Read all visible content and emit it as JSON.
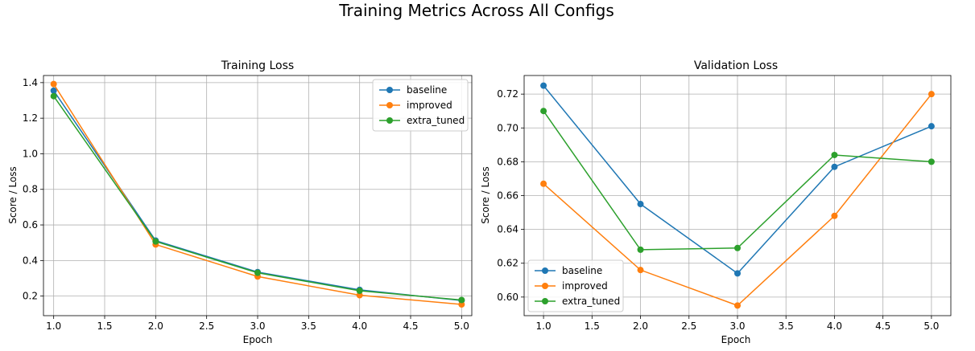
{
  "figure": {
    "title": "Training Metrics Across All Configs"
  },
  "colors": {
    "baseline": "#1f77b4",
    "improved": "#ff7f0e",
    "extra_tuned": "#2ca02c"
  },
  "chart_data": [
    {
      "type": "line",
      "title": "Training Loss",
      "xlabel": "Epoch",
      "ylabel": "Score / Loss",
      "x": [
        1.0,
        2.0,
        3.0,
        4.0,
        5.0
      ],
      "xlim": [
        0.9,
        5.1
      ],
      "ylim": [
        0.09,
        1.44
      ],
      "xticks": [
        "1.0",
        "1.5",
        "2.0",
        "2.5",
        "3.0",
        "3.5",
        "4.0",
        "4.5",
        "5.0"
      ],
      "yticks": [
        "0.2",
        "0.4",
        "0.6",
        "0.8",
        "1.0",
        "1.2",
        "1.4"
      ],
      "grid": true,
      "legend": "top-right",
      "series": [
        {
          "name": "baseline",
          "values": [
            1.355,
            0.512,
            0.335,
            0.235,
            0.175
          ]
        },
        {
          "name": "improved",
          "values": [
            1.392,
            0.49,
            0.31,
            0.205,
            0.153
          ]
        },
        {
          "name": "extra_tuned",
          "values": [
            1.324,
            0.507,
            0.331,
            0.23,
            0.178
          ]
        }
      ]
    },
    {
      "type": "line",
      "title": "Validation Loss",
      "xlabel": "Epoch",
      "ylabel": "Score / Loss",
      "x": [
        1.0,
        2.0,
        3.0,
        4.0,
        5.0
      ],
      "xlim": [
        0.8,
        5.2
      ],
      "ylim": [
        0.589,
        0.731
      ],
      "xticks": [
        "1.0",
        "1.5",
        "2.0",
        "2.5",
        "3.0",
        "3.5",
        "4.0",
        "4.5",
        "5.0"
      ],
      "yticks": [
        "0.60",
        "0.62",
        "0.64",
        "0.66",
        "0.68",
        "0.70",
        "0.72"
      ],
      "grid": true,
      "legend": "bottom-left",
      "series": [
        {
          "name": "baseline",
          "values": [
            0.725,
            0.655,
            0.614,
            0.677,
            0.701
          ]
        },
        {
          "name": "improved",
          "values": [
            0.667,
            0.616,
            0.595,
            0.648,
            0.72
          ]
        },
        {
          "name": "extra_tuned",
          "values": [
            0.71,
            0.628,
            0.629,
            0.684,
            0.68
          ]
        }
      ]
    }
  ]
}
